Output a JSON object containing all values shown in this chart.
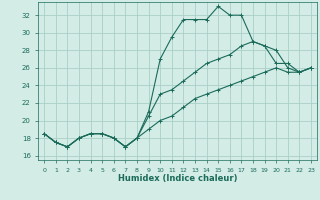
{
  "xlabel": "Humidex (Indice chaleur)",
  "xlim": [
    -0.5,
    23.5
  ],
  "ylim": [
    15.5,
    33.5
  ],
  "xticks": [
    0,
    1,
    2,
    3,
    4,
    5,
    6,
    7,
    8,
    9,
    10,
    11,
    12,
    13,
    14,
    15,
    16,
    17,
    18,
    19,
    20,
    21,
    22,
    23
  ],
  "yticks": [
    16,
    18,
    20,
    22,
    24,
    26,
    28,
    30,
    32
  ],
  "bg_color": "#d4ece6",
  "grid_color": "#aacfc8",
  "line_color": "#1a6b5a",
  "line1_y": [
    18.5,
    17.5,
    17.0,
    18.0,
    18.5,
    18.5,
    18.0,
    17.0,
    18.0,
    21.0,
    27.0,
    29.5,
    31.5,
    31.5,
    31.5,
    33.0,
    32.0,
    32.0,
    29.0,
    28.5,
    26.5,
    26.5,
    25.5,
    26.0
  ],
  "line2_y": [
    18.5,
    17.5,
    17.0,
    18.0,
    18.5,
    18.5,
    18.0,
    17.0,
    18.0,
    20.5,
    23.0,
    23.5,
    24.5,
    25.5,
    26.5,
    27.0,
    27.5,
    28.5,
    29.0,
    28.5,
    28.0,
    26.0,
    25.5,
    26.0
  ],
  "line3_y": [
    18.5,
    17.5,
    17.0,
    18.0,
    18.5,
    18.5,
    18.0,
    17.0,
    18.0,
    19.0,
    20.0,
    20.5,
    21.5,
    22.5,
    23.0,
    23.5,
    24.0,
    24.5,
    25.0,
    25.5,
    26.0,
    25.5,
    25.5,
    26.0
  ],
  "markersize": 3,
  "linewidth": 0.8
}
